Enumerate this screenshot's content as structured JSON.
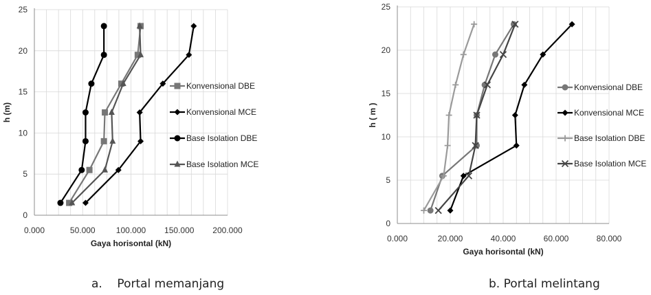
{
  "colors": {
    "grid": "#d8d8d8",
    "axis": "#8c8c8c",
    "dark": "#000000",
    "gray": "#777777",
    "lightgray": "#9a9a9a"
  },
  "captions": {
    "a": "a.    Portal memanjang",
    "b": "b. Portal melintang"
  },
  "chart_data": [
    {
      "type": "line",
      "id": "a",
      "title": "",
      "xlabel": "Gaya horisontal (kN)",
      "ylabel": "h  (m)",
      "xlim": [
        0,
        200
      ],
      "ylim": [
        0,
        25
      ],
      "xticks": [
        "0.000",
        "50.000",
        "100.000",
        "150.000",
        "200.000"
      ],
      "yticks": [
        "0",
        "5",
        "10",
        "15",
        "20",
        "25"
      ],
      "grid": true,
      "legend_position": "right",
      "series": [
        {
          "name": "Konvensional DBE",
          "marker": "square",
          "color": "#777777",
          "x": [
            36,
            57,
            72,
            73,
            90,
            107,
            110
          ],
          "y": [
            1.5,
            5.5,
            9,
            12.5,
            16,
            19.5,
            23
          ]
        },
        {
          "name": "Konvensional MCE",
          "marker": "diamond",
          "color": "#000000",
          "x": [
            53,
            87,
            110,
            109,
            133,
            160,
            165
          ],
          "y": [
            1.5,
            5.5,
            9,
            12.5,
            16,
            19.5,
            23
          ]
        },
        {
          "name": "Base Isolation DBE",
          "marker": "circle",
          "color": "#000000",
          "x": [
            27,
            49,
            53,
            53,
            59,
            72,
            72
          ],
          "y": [
            1.5,
            5.5,
            9,
            12.5,
            16,
            19.5,
            23
          ]
        },
        {
          "name": "Base Isolation MCE",
          "marker": "triangle",
          "color": "#555555",
          "x": [
            39,
            73,
            81,
            80,
            92,
            110,
            109
          ],
          "y": [
            1.5,
            5.5,
            9,
            12.5,
            16,
            19.5,
            23
          ]
        }
      ]
    },
    {
      "type": "line",
      "id": "b",
      "title": "",
      "xlabel": "Gaya horisontal (kN)",
      "ylabel": "h  ( m )",
      "xlim": [
        0,
        80
      ],
      "ylim": [
        0,
        25
      ],
      "xticks": [
        "0.000",
        "20.000",
        "40.000",
        "60.000",
        "80.000"
      ],
      "yticks": [
        "0",
        "5",
        "10",
        "15",
        "20",
        "25"
      ],
      "grid": true,
      "legend_position": "right",
      "series": [
        {
          "name": "Konvensional DBE",
          "marker": "circle",
          "color": "#777777",
          "x": [
            12.5,
            17,
            30,
            30,
            33,
            37,
            44
          ],
          "y": [
            1.5,
            5.5,
            9,
            12.5,
            16,
            19.5,
            23
          ]
        },
        {
          "name": "Konvensional MCE",
          "marker": "diamond",
          "color": "#000000",
          "x": [
            20,
            25,
            45,
            44.5,
            48,
            55,
            66
          ],
          "y": [
            1.5,
            5.5,
            9,
            12.5,
            16,
            19.5,
            23
          ]
        },
        {
          "name": "Base Isolation DBE",
          "marker": "plus",
          "color": "#9a9a9a",
          "x": [
            10,
            17.5,
            19,
            19.5,
            22,
            25,
            29
          ],
          "y": [
            1.5,
            5.5,
            9,
            12.5,
            16,
            19.5,
            23
          ]
        },
        {
          "name": "Base Isolation MCE",
          "marker": "x",
          "color": "#444444",
          "x": [
            15.5,
            27,
            29.5,
            30,
            34,
            40,
            44.5
          ],
          "y": [
            1.5,
            5.5,
            9,
            12.5,
            16,
            19.5,
            23
          ]
        }
      ]
    }
  ]
}
